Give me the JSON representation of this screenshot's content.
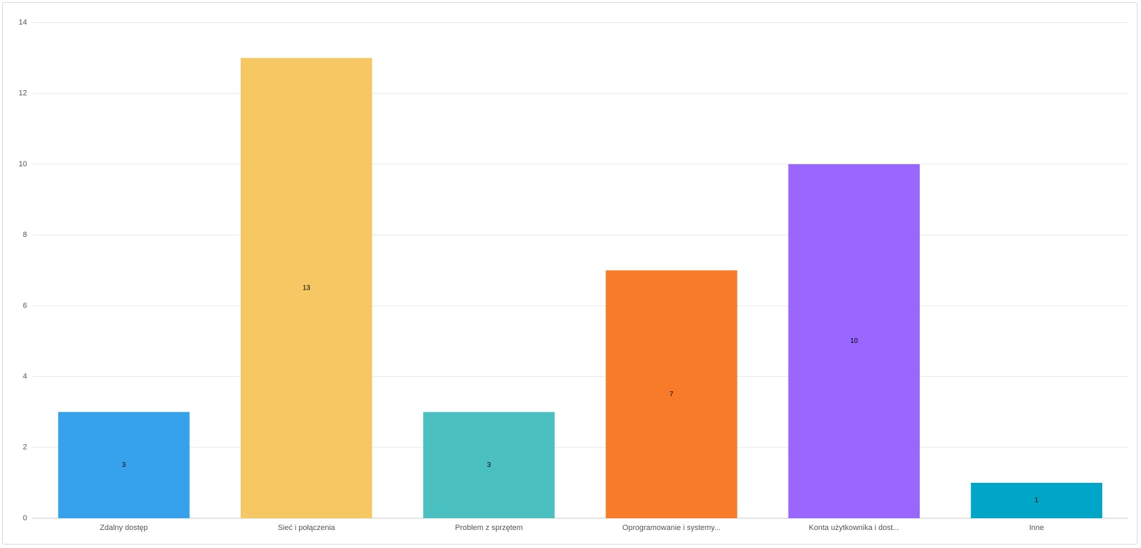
{
  "chart_data": {
    "type": "bar",
    "categories": [
      "Zdalny dostęp",
      "Sieć i połączenia",
      "Problem z sprzętem",
      "Oprogramowanie i systemy...",
      "Konta użytkownika i dost...",
      "Inne"
    ],
    "values": [
      3,
      13,
      3,
      7,
      10,
      1
    ],
    "colors": [
      "#36a2eb",
      "#f6c863",
      "#4bc0c0",
      "#f77b28",
      "#9966ff",
      "#00a6c8"
    ],
    "ylim": [
      0,
      14
    ],
    "yticks": [
      0,
      2,
      4,
      6,
      8,
      10,
      12,
      14
    ],
    "grid": true
  }
}
